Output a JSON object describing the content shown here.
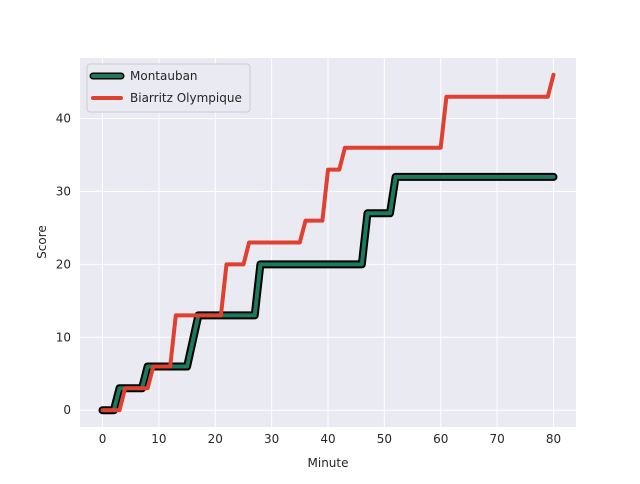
{
  "chart_data": {
    "type": "line",
    "xlabel": "Minute",
    "ylabel": "Score",
    "xlim": [
      -4,
      84
    ],
    "ylim": [
      -2.3,
      48.3
    ],
    "xticks": [
      0,
      10,
      20,
      30,
      40,
      50,
      60,
      70,
      80
    ],
    "yticks": [
      0,
      10,
      20,
      30,
      40
    ],
    "grid": true,
    "legend_position": "top-left",
    "series": [
      {
        "name": "Montauban",
        "color": "#1a7a5e",
        "outline_color": "#000000",
        "points": [
          [
            0,
            0
          ],
          [
            2,
            0
          ],
          [
            3,
            3
          ],
          [
            7,
            3
          ],
          [
            8,
            6
          ],
          [
            15,
            6
          ],
          [
            17,
            13
          ],
          [
            27,
            13
          ],
          [
            28,
            20
          ],
          [
            46,
            20
          ],
          [
            47,
            27
          ],
          [
            51,
            27
          ],
          [
            52,
            32
          ],
          [
            80,
            32
          ]
        ]
      },
      {
        "name": "Biarritz Olympique",
        "color": "#e0402f",
        "points": [
          [
            0,
            0
          ],
          [
            3,
            0
          ],
          [
            4,
            3
          ],
          [
            8,
            3
          ],
          [
            9,
            6
          ],
          [
            12,
            6
          ],
          [
            13,
            13
          ],
          [
            21,
            13
          ],
          [
            22,
            20
          ],
          [
            25,
            20
          ],
          [
            26,
            23
          ],
          [
            35,
            23
          ],
          [
            36,
            26
          ],
          [
            39,
            26
          ],
          [
            40,
            33
          ],
          [
            42,
            33
          ],
          [
            43,
            36
          ],
          [
            60,
            36
          ],
          [
            61,
            43
          ],
          [
            79,
            43
          ],
          [
            80,
            46
          ]
        ]
      }
    ]
  }
}
